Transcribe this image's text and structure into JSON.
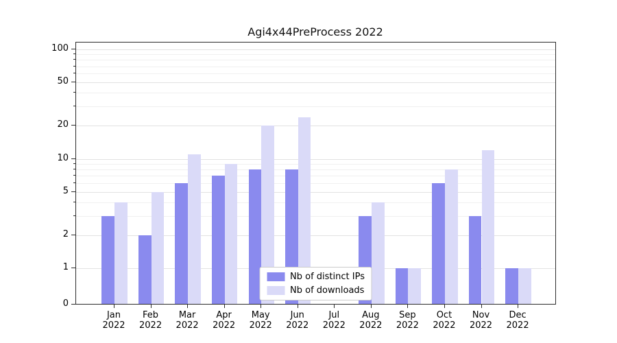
{
  "title": "Agi4x44PreProcess 2022",
  "chart_data": {
    "type": "bar",
    "title": "Agi4x44PreProcess 2022",
    "categories": [
      "Jan 2022",
      "Feb 2022",
      "Mar 2022",
      "Apr 2022",
      "May 2022",
      "Jun 2022",
      "Jul 2022",
      "Aug 2022",
      "Sep 2022",
      "Oct 2022",
      "Nov 2022",
      "Dec 2022"
    ],
    "series": [
      {
        "name": "Nb of distinct IPs",
        "color": "#8a8aee",
        "values": [
          3,
          2,
          6,
          7,
          8,
          8,
          0,
          3,
          1,
          6,
          3,
          1
        ]
      },
      {
        "name": "Nb of downloads",
        "color": "#dadaf8",
        "values": [
          4,
          5,
          11,
          9,
          20,
          24,
          0,
          4,
          1,
          8,
          12,
          1
        ]
      }
    ],
    "yscale": "symlog",
    "yticks": [
      0,
      1,
      2,
      5,
      10,
      20,
      50,
      100
    ],
    "minor_gridlines": [
      3,
      4,
      6,
      7,
      8,
      9,
      30,
      40,
      60,
      70,
      80,
      90
    ],
    "ylim": [
      0,
      115
    ],
    "grid": true,
    "legend_position": "lower center"
  }
}
